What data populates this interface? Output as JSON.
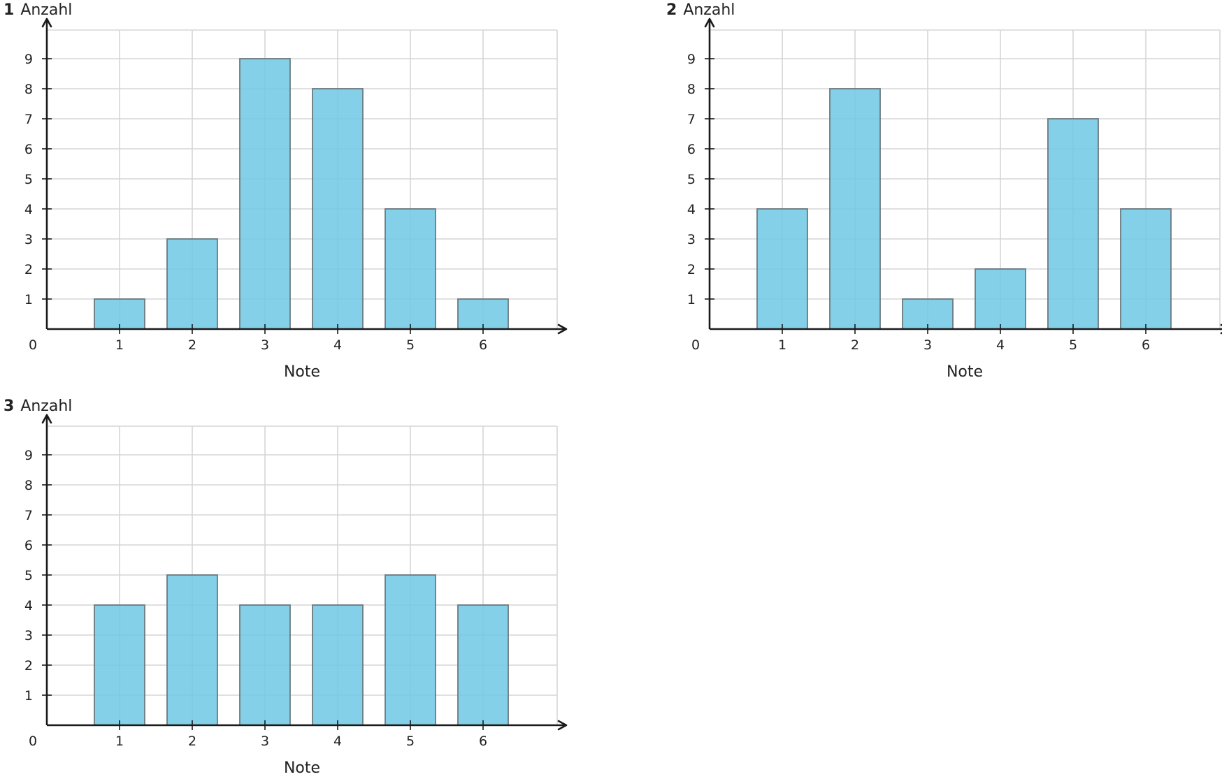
{
  "colors": {
    "bar_fill": "#6ec8e4",
    "bar_stroke": "#6b7a80",
    "grid": "#d6d6d6",
    "axis": "#1a1a1a"
  },
  "chart_data": [
    {
      "type": "bar",
      "number": "1",
      "ylabel": "Anzahl",
      "xlabel": "Note",
      "origin_label": "0",
      "categories": [
        "1",
        "2",
        "3",
        "4",
        "5",
        "6"
      ],
      "values": [
        1,
        3,
        9,
        8,
        4,
        1
      ],
      "yticks": [
        "1",
        "2",
        "3",
        "4",
        "5",
        "6",
        "7",
        "8",
        "9"
      ],
      "ylim": [
        0,
        9.9
      ],
      "grid": true
    },
    {
      "type": "bar",
      "number": "2",
      "ylabel": "Anzahl",
      "xlabel": "Note",
      "origin_label": "0",
      "categories": [
        "1",
        "2",
        "3",
        "4",
        "5",
        "6"
      ],
      "values": [
        4,
        8,
        1,
        2,
        7,
        4
      ],
      "yticks": [
        "1",
        "2",
        "3",
        "4",
        "5",
        "6",
        "7",
        "8",
        "9"
      ],
      "ylim": [
        0,
        9.9
      ],
      "grid": true
    },
    {
      "type": "bar",
      "number": "3",
      "ylabel": "Anzahl",
      "xlabel": "Note",
      "origin_label": "0",
      "categories": [
        "1",
        "2",
        "3",
        "4",
        "5",
        "6"
      ],
      "values": [
        4,
        5,
        4,
        4,
        5,
        4
      ],
      "yticks": [
        "1",
        "2",
        "3",
        "4",
        "5",
        "6",
        "7",
        "8",
        "9"
      ],
      "ylim": [
        0,
        9.9
      ],
      "grid": true
    }
  ]
}
